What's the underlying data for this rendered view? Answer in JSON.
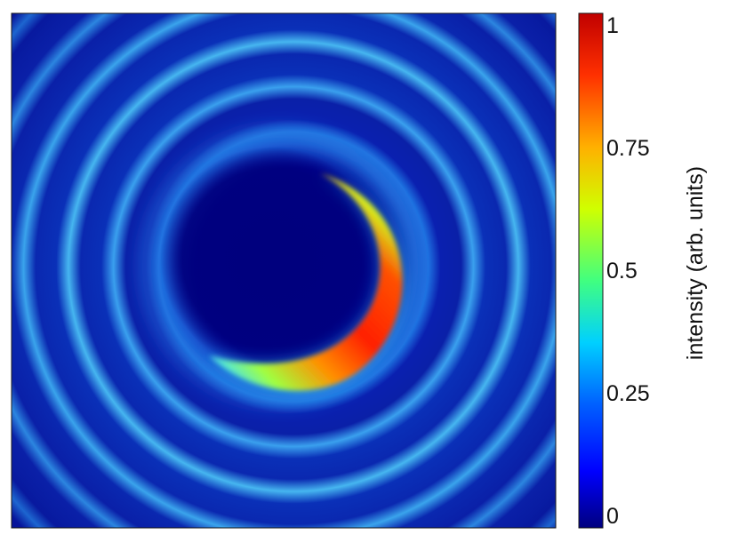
{
  "chart_data": {
    "type": "heatmap",
    "title": "",
    "xlabel": "",
    "ylabel": "",
    "description_of_pattern": "",
    "colormap": [
      "#00007f",
      "#0000ff",
      "#0080ff",
      "#00ffff",
      "#80ff80",
      "#ffff00",
      "#ff8000",
      "#ff0000",
      "#7f0000"
    ],
    "colorbar": {
      "label": "intensity (arb. units)",
      "range": [
        0,
        1
      ],
      "ticks": [
        {
          "value": 0,
          "label": "0"
        },
        {
          "value": 0.25,
          "label": "0.25"
        },
        {
          "value": 0.5,
          "label": "0.5"
        },
        {
          "value": 0.75,
          "label": "0.75"
        },
        {
          "value": 1,
          "label": "1"
        }
      ]
    },
    "field": {
      "background_level": 0.05,
      "central_dark_disk_level": 0.0,
      "outer_ring_level": 0.3,
      "crescent_peak_level": 1.0
    }
  }
}
